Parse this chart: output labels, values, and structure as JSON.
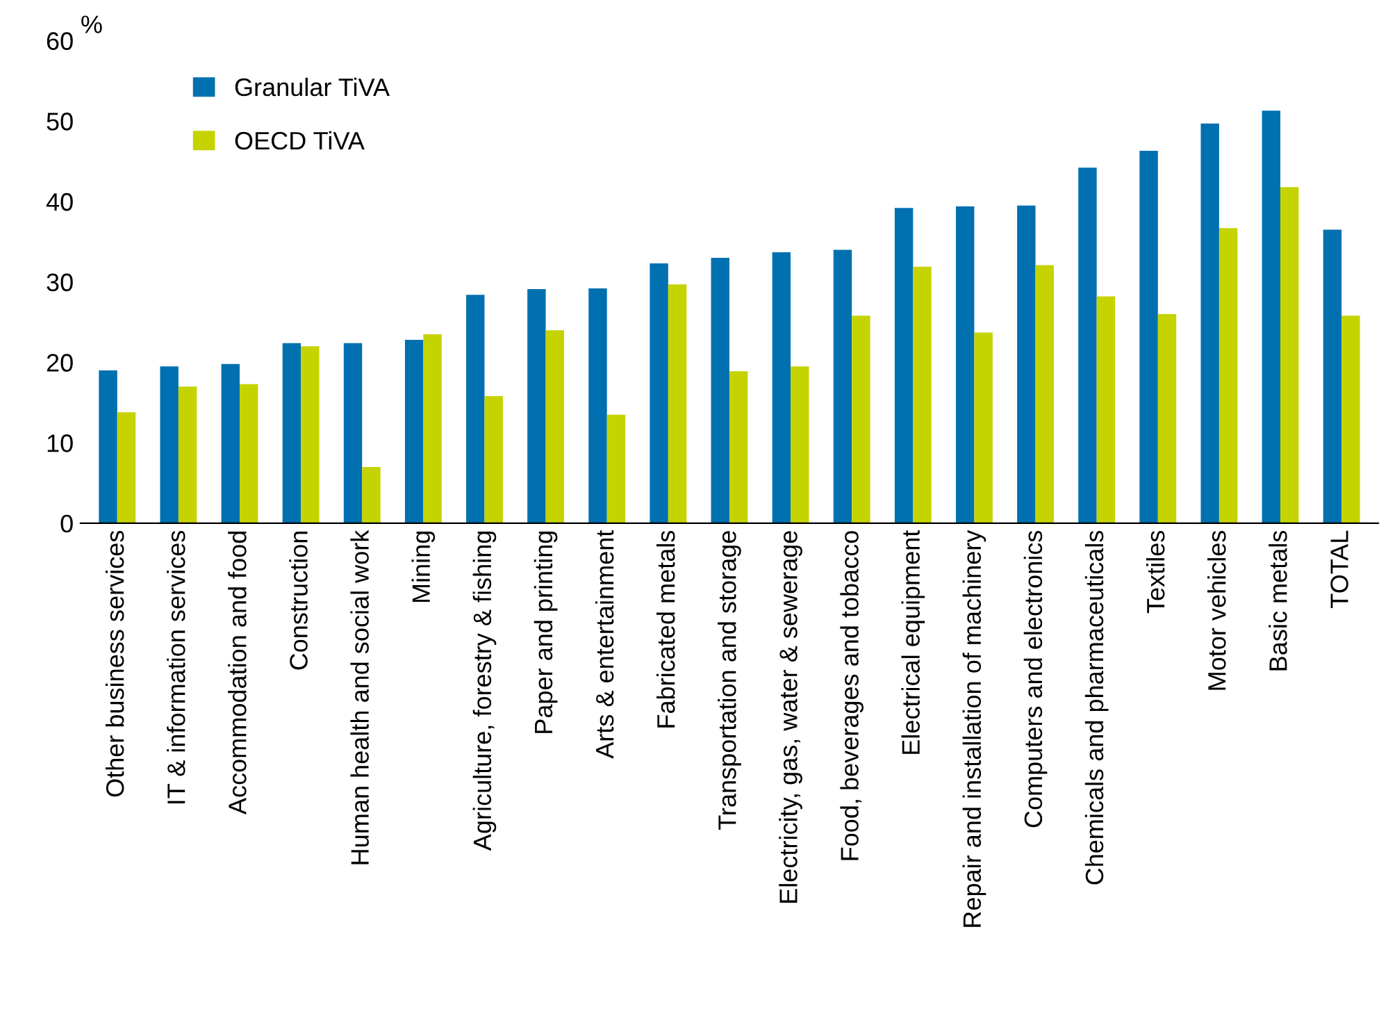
{
  "chart_data": {
    "type": "bar",
    "ylabel": "%",
    "categories": [
      "Other business services",
      "IT & information services",
      "Accommodation and food",
      "Construction",
      "Human health and social work",
      "Mining",
      "Agriculture, forestry & fishing",
      "Paper and printing",
      "Arts & entertainment",
      "Fabricated metals",
      "Transportation and storage",
      "Electricity, gas, water & sewerage",
      "Food, beverages and tobacco",
      "Electrical equipment",
      "Repair and installation of machinery",
      "Computers and electronics",
      "Chemicals and pharmaceuticals",
      "Textiles",
      "Motor vehicles",
      "Basic metals",
      "TOTAL"
    ],
    "series": [
      {
        "name": "Granular TiVA",
        "color": "#0070b0",
        "values": [
          19,
          19.5,
          19.8,
          22.4,
          22.4,
          22.8,
          28.4,
          29.1,
          29.2,
          32.3,
          33,
          33.7,
          34,
          39.2,
          39.4,
          39.5,
          44.2,
          46.3,
          49.7,
          51.3,
          36.5
        ]
      },
      {
        "name": "OECD TiVA",
        "color": "#c5d300",
        "values": [
          13.8,
          17,
          17.3,
          22,
          7,
          23.5,
          15.8,
          24,
          13.5,
          29.7,
          18.9,
          19.5,
          25.8,
          31.9,
          23.7,
          32.1,
          28.2,
          26,
          36.7,
          41.8,
          25.8
        ]
      }
    ],
    "ylim": [
      0,
      60
    ],
    "yticks": [
      0,
      10,
      20,
      30,
      40,
      50,
      60
    ],
    "grid": false,
    "legend": "top left"
  }
}
